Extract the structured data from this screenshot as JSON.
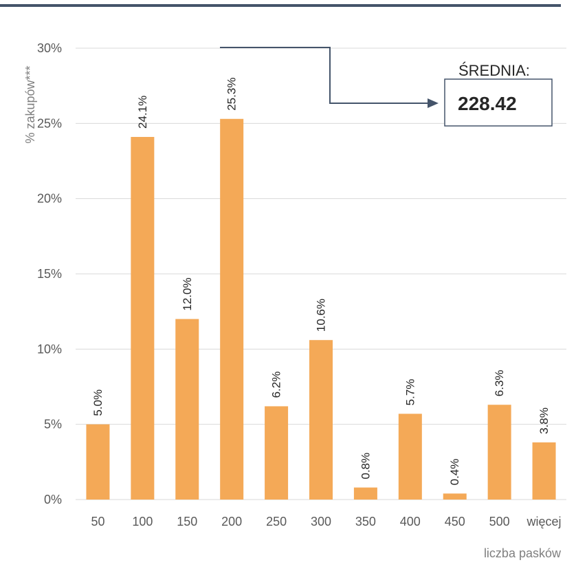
{
  "chart_data": {
    "type": "bar",
    "title": "",
    "xlabel": "liczba pasków",
    "ylabel": "% zakupów***",
    "categories": [
      "50",
      "100",
      "150",
      "200",
      "250",
      "300",
      "350",
      "400",
      "450",
      "500",
      "więcej"
    ],
    "values": [
      5.0,
      24.1,
      12.0,
      25.3,
      6.2,
      10.6,
      0.8,
      5.7,
      0.4,
      6.3,
      3.8
    ],
    "data_labels": [
      "5.0%",
      "24.1%",
      "12.0%",
      "25.3%",
      "6.2%",
      "10.6%",
      "0.8%",
      "5.7%",
      "0.4%",
      "6.3%",
      "3.8%"
    ],
    "ylim": [
      0,
      30
    ],
    "yticks": [
      0,
      5,
      10,
      15,
      20,
      25,
      30
    ],
    "ytick_labels": [
      "0%",
      "5%",
      "10%",
      "15%",
      "20%",
      "25%",
      "30%"
    ],
    "grid": true,
    "bar_color": "#f4a957",
    "annotation": {
      "label": "ŚREDNIA:",
      "value": "228.42"
    }
  },
  "colors": {
    "top_rule": "#44546a",
    "grid": "#d9d9d9",
    "arrow": "#44546a",
    "annotation_border": "#44546a"
  }
}
